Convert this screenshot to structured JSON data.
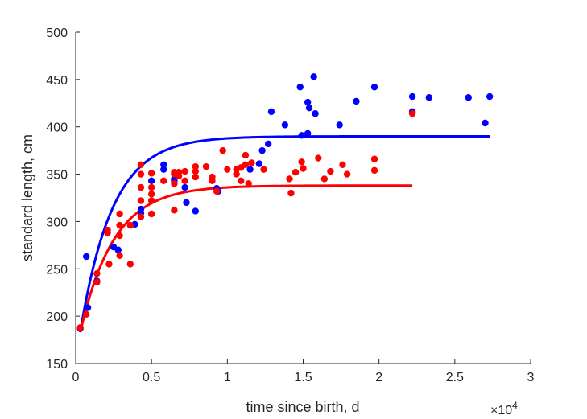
{
  "chart_data": {
    "type": "scatter",
    "xlabel": "time since birth, d",
    "ylabel": "standard length, cm",
    "x_multiplier_label": "×10",
    "x_multiplier_exponent": "4",
    "xlim": [
      0,
      30000
    ],
    "ylim": [
      150,
      500
    ],
    "xticks": [
      0,
      5000,
      10000,
      15000,
      20000,
      25000,
      30000
    ],
    "xtick_labels": [
      "0",
      "0.5",
      "1",
      "1.5",
      "2",
      "2.5",
      "3"
    ],
    "yticks": [
      150,
      200,
      250,
      300,
      350,
      400,
      450,
      500
    ],
    "ytick_labels": [
      "150",
      "200",
      "250",
      "300",
      "350",
      "400",
      "450",
      "500"
    ],
    "grid": false,
    "series": [
      {
        "color": "#0000ff",
        "kind": "points",
        "points": [
          [
            300,
            187
          ],
          [
            700,
            263
          ],
          [
            800,
            209
          ],
          [
            1400,
            237
          ],
          [
            2500,
            273
          ],
          [
            2800,
            270
          ],
          [
            3900,
            297
          ],
          [
            4300,
            313
          ],
          [
            4300,
            309
          ],
          [
            5000,
            343
          ],
          [
            5800,
            360
          ],
          [
            5800,
            355
          ],
          [
            6500,
            345
          ],
          [
            6500,
            343
          ],
          [
            7200,
            336
          ],
          [
            7300,
            320
          ],
          [
            7900,
            311
          ],
          [
            9300,
            335
          ],
          [
            9400,
            332
          ],
          [
            11500,
            355
          ],
          [
            12100,
            361
          ],
          [
            12300,
            375
          ],
          [
            12700,
            382
          ],
          [
            12900,
            416
          ],
          [
            13800,
            402
          ],
          [
            14800,
            442
          ],
          [
            14900,
            391
          ],
          [
            15300,
            393
          ],
          [
            15300,
            426
          ],
          [
            15400,
            420
          ],
          [
            15700,
            453
          ],
          [
            15800,
            414
          ],
          [
            17400,
            402
          ],
          [
            18500,
            427
          ],
          [
            19700,
            442
          ],
          [
            22200,
            432
          ],
          [
            22200,
            416
          ],
          [
            23300,
            431
          ],
          [
            25900,
            431
          ],
          [
            27000,
            404
          ],
          [
            27300,
            432
          ]
        ]
      },
      {
        "color": "#ff0000",
        "kind": "points",
        "points": [
          [
            300,
            188
          ],
          [
            700,
            202
          ],
          [
            1400,
            245
          ],
          [
            1400,
            236
          ],
          [
            2100,
            291
          ],
          [
            2100,
            288
          ],
          [
            2200,
            255
          ],
          [
            2900,
            308
          ],
          [
            2900,
            296
          ],
          [
            2900,
            285
          ],
          [
            2900,
            264
          ],
          [
            3600,
            255
          ],
          [
            3600,
            296
          ],
          [
            4300,
            360
          ],
          [
            4300,
            350
          ],
          [
            4300,
            336
          ],
          [
            4300,
            322
          ],
          [
            4300,
            305
          ],
          [
            5000,
            351
          ],
          [
            5000,
            336
          ],
          [
            5000,
            329
          ],
          [
            5000,
            322
          ],
          [
            5000,
            308
          ],
          [
            5800,
            343
          ],
          [
            6500,
            350
          ],
          [
            6500,
            352
          ],
          [
            6500,
            340
          ],
          [
            6500,
            312
          ],
          [
            6800,
            352
          ],
          [
            6800,
            348
          ],
          [
            7200,
            353
          ],
          [
            7200,
            343
          ],
          [
            7900,
            358
          ],
          [
            7900,
            353
          ],
          [
            7900,
            347
          ],
          [
            8600,
            358
          ],
          [
            9000,
            347
          ],
          [
            9000,
            343
          ],
          [
            9300,
            332
          ],
          [
            9700,
            375
          ],
          [
            10000,
            355
          ],
          [
            10600,
            355
          ],
          [
            10600,
            350
          ],
          [
            10900,
            357
          ],
          [
            10900,
            343
          ],
          [
            11200,
            370
          ],
          [
            11200,
            360
          ],
          [
            11400,
            340
          ],
          [
            11600,
            362
          ],
          [
            12400,
            355
          ],
          [
            14100,
            345
          ],
          [
            14200,
            330
          ],
          [
            14500,
            352
          ],
          [
            14900,
            363
          ],
          [
            15000,
            356
          ],
          [
            16000,
            367
          ],
          [
            16400,
            345
          ],
          [
            16800,
            353
          ],
          [
            17600,
            360
          ],
          [
            17900,
            350
          ],
          [
            19700,
            366
          ],
          [
            19700,
            354
          ],
          [
            22200,
            414
          ]
        ]
      },
      {
        "color": "#0000ff",
        "kind": "curve",
        "model": "von_bertalanffy",
        "Linf": 390,
        "L0": 183,
        "k": 0.00047,
        "x_range": [
          300,
          27300
        ]
      },
      {
        "color": "#ff0000",
        "kind": "curve",
        "model": "von_bertalanffy",
        "Linf": 338,
        "L0": 183,
        "k": 0.00045,
        "x_range": [
          300,
          22200
        ]
      }
    ]
  }
}
